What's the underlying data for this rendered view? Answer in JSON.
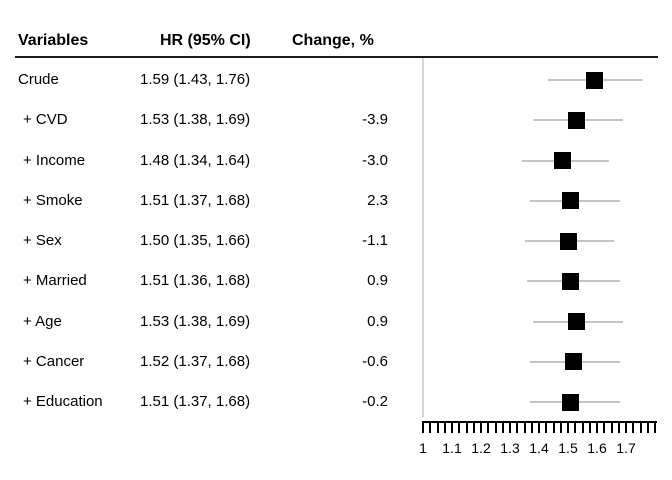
{
  "colors": {
    "background": "#ffffff",
    "text": "#000000",
    "header_rule": "#1a1a1a",
    "reference_line": "#d6d6d6",
    "ci_line": "#c4c4c4",
    "marker": "#000000",
    "axis": "#000000"
  },
  "chart_data": {
    "type": "scatter",
    "subtype": "forest_plot",
    "title": "",
    "xlabel": "",
    "ylabel": "",
    "grid": false,
    "legend_position": "none",
    "columns": [
      "Variables",
      "HR (95% CI)",
      "Change, %"
    ],
    "x_axis": {
      "min": 1.0,
      "max": 1.8,
      "minor_tick_step": 0.025,
      "tick_values": [
        1,
        1.1,
        1.2,
        1.3,
        1.4,
        1.5,
        1.6,
        1.7
      ],
      "tick_labels": [
        "1",
        "1.1",
        "1.2",
        "1.3",
        "1.4",
        "1.5",
        "1.6",
        "1.7"
      ]
    },
    "reference_value": 1.0,
    "rows": [
      {
        "variable": "Crude",
        "hr_ci": "1.59 (1.43, 1.76)",
        "change_pct": "",
        "hr": 1.59,
        "ci_low": 1.43,
        "ci_high": 1.76,
        "indent": false
      },
      {
        "variable": "+ CVD",
        "hr_ci": "1.53 (1.38, 1.69)",
        "change_pct": "-3.9",
        "hr": 1.53,
        "ci_low": 1.38,
        "ci_high": 1.69,
        "indent": true
      },
      {
        "variable": "+ Income",
        "hr_ci": "1.48 (1.34, 1.64)",
        "change_pct": "-3.0",
        "hr": 1.48,
        "ci_low": 1.34,
        "ci_high": 1.64,
        "indent": true
      },
      {
        "variable": "+ Smoke",
        "hr_ci": "1.51 (1.37, 1.68)",
        "change_pct": "2.3",
        "hr": 1.51,
        "ci_low": 1.37,
        "ci_high": 1.68,
        "indent": true
      },
      {
        "variable": "+ Sex",
        "hr_ci": "1.50 (1.35, 1.66)",
        "change_pct": "-1.1",
        "hr": 1.5,
        "ci_low": 1.35,
        "ci_high": 1.66,
        "indent": true
      },
      {
        "variable": "+ Married",
        "hr_ci": "1.51 (1.36, 1.68)",
        "change_pct": "0.9",
        "hr": 1.51,
        "ci_low": 1.36,
        "ci_high": 1.68,
        "indent": true
      },
      {
        "variable": "+ Age",
        "hr_ci": "1.53 (1.38, 1.69)",
        "change_pct": "0.9",
        "hr": 1.53,
        "ci_low": 1.38,
        "ci_high": 1.69,
        "indent": true
      },
      {
        "variable": "+ Cancer",
        "hr_ci": "1.52 (1.37, 1.68)",
        "change_pct": "-0.6",
        "hr": 1.52,
        "ci_low": 1.37,
        "ci_high": 1.68,
        "indent": true
      },
      {
        "variable": "+ Education",
        "hr_ci": "1.51 (1.37, 1.68)",
        "change_pct": "-0.2",
        "hr": 1.51,
        "ci_low": 1.37,
        "ci_high": 1.68,
        "indent": true
      }
    ]
  }
}
